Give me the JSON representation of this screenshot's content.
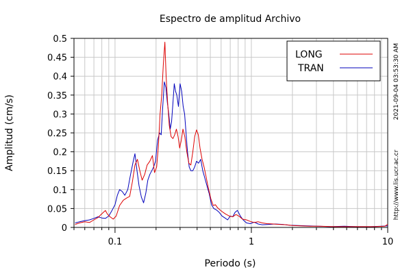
{
  "chart_data": {
    "type": "line",
    "title": "Espectro de amplitud Archivo",
    "xlabel": "Periodo (s)",
    "ylabel": "Amplitud (cm/s)",
    "xscale": "log",
    "xlim": [
      0.05,
      10
    ],
    "ylim": [
      0,
      0.5
    ],
    "xtick_labels": [
      {
        "value": 0.1,
        "label": "0.1"
      },
      {
        "value": 1,
        "label": "1"
      },
      {
        "value": 10,
        "label": "10"
      }
    ],
    "ytick_labels": [
      {
        "value": 0,
        "label": "0"
      },
      {
        "value": 0.05,
        "label": "0.05"
      },
      {
        "value": 0.1,
        "label": "0.1"
      },
      {
        "value": 0.15,
        "label": "0.15"
      },
      {
        "value": 0.2,
        "label": "0.2"
      },
      {
        "value": 0.25,
        "label": "0.25"
      },
      {
        "value": 0.3,
        "label": "0.3"
      },
      {
        "value": 0.35,
        "label": "0.35"
      },
      {
        "value": 0.4,
        "label": "0.4"
      },
      {
        "value": 0.45,
        "label": "0.45"
      },
      {
        "value": 0.5,
        "label": "0.5"
      }
    ],
    "grid": true,
    "legend_position": "top-right",
    "series": [
      {
        "name": "LONG",
        "color": "#dd0000",
        "points": [
          [
            0.051,
            0.008
          ],
          [
            0.055,
            0.012
          ],
          [
            0.06,
            0.015
          ],
          [
            0.065,
            0.013
          ],
          [
            0.07,
            0.02
          ],
          [
            0.075,
            0.026
          ],
          [
            0.08,
            0.036
          ],
          [
            0.085,
            0.045
          ],
          [
            0.088,
            0.035
          ],
          [
            0.092,
            0.028
          ],
          [
            0.097,
            0.022
          ],
          [
            0.102,
            0.03
          ],
          [
            0.108,
            0.058
          ],
          [
            0.115,
            0.072
          ],
          [
            0.122,
            0.078
          ],
          [
            0.128,
            0.082
          ],
          [
            0.134,
            0.12
          ],
          [
            0.14,
            0.165
          ],
          [
            0.146,
            0.18
          ],
          [
            0.152,
            0.15
          ],
          [
            0.158,
            0.125
          ],
          [
            0.165,
            0.14
          ],
          [
            0.172,
            0.165
          ],
          [
            0.18,
            0.175
          ],
          [
            0.188,
            0.19
          ],
          [
            0.195,
            0.145
          ],
          [
            0.202,
            0.16
          ],
          [
            0.208,
            0.215
          ],
          [
            0.214,
            0.3
          ],
          [
            0.22,
            0.35
          ],
          [
            0.226,
            0.43
          ],
          [
            0.232,
            0.49
          ],
          [
            0.237,
            0.4
          ],
          [
            0.243,
            0.33
          ],
          [
            0.25,
            0.27
          ],
          [
            0.258,
            0.24
          ],
          [
            0.266,
            0.235
          ],
          [
            0.274,
            0.245
          ],
          [
            0.282,
            0.26
          ],
          [
            0.29,
            0.24
          ],
          [
            0.298,
            0.21
          ],
          [
            0.306,
            0.23
          ],
          [
            0.315,
            0.26
          ],
          [
            0.325,
            0.24
          ],
          [
            0.336,
            0.2
          ],
          [
            0.348,
            0.17
          ],
          [
            0.36,
            0.165
          ],
          [
            0.372,
            0.2
          ],
          [
            0.384,
            0.24
          ],
          [
            0.396,
            0.258
          ],
          [
            0.408,
            0.245
          ],
          [
            0.42,
            0.21
          ],
          [
            0.435,
            0.18
          ],
          [
            0.45,
            0.16
          ],
          [
            0.468,
            0.13
          ],
          [
            0.486,
            0.1
          ],
          [
            0.505,
            0.075
          ],
          [
            0.525,
            0.058
          ],
          [
            0.545,
            0.06
          ],
          [
            0.565,
            0.052
          ],
          [
            0.59,
            0.046
          ],
          [
            0.62,
            0.04
          ],
          [
            0.65,
            0.035
          ],
          [
            0.69,
            0.03
          ],
          [
            0.73,
            0.028
          ],
          [
            0.77,
            0.034
          ],
          [
            0.81,
            0.03
          ],
          [
            0.86,
            0.022
          ],
          [
            0.92,
            0.02
          ],
          [
            0.98,
            0.016
          ],
          [
            1.05,
            0.013
          ],
          [
            1.12,
            0.015
          ],
          [
            1.2,
            0.012
          ],
          [
            1.3,
            0.01
          ],
          [
            1.45,
            0.009
          ],
          [
            1.6,
            0.008
          ],
          [
            1.8,
            0.007
          ],
          [
            2.0,
            0.005
          ],
          [
            2.3,
            0.004
          ],
          [
            2.7,
            0.003
          ],
          [
            3.2,
            0.003
          ],
          [
            4.0,
            0.002
          ],
          [
            5.0,
            0.002
          ],
          [
            6.5,
            0.002
          ],
          [
            8.0,
            0.002
          ],
          [
            9.5,
            0.003
          ],
          [
            10.0,
            0.008
          ]
        ]
      },
      {
        "name": "TRAN",
        "color": "#0000bb",
        "points": [
          [
            0.051,
            0.012
          ],
          [
            0.055,
            0.015
          ],
          [
            0.06,
            0.018
          ],
          [
            0.065,
            0.02
          ],
          [
            0.07,
            0.024
          ],
          [
            0.075,
            0.028
          ],
          [
            0.08,
            0.025
          ],
          [
            0.085,
            0.024
          ],
          [
            0.09,
            0.03
          ],
          [
            0.095,
            0.045
          ],
          [
            0.1,
            0.06
          ],
          [
            0.104,
            0.085
          ],
          [
            0.108,
            0.1
          ],
          [
            0.113,
            0.095
          ],
          [
            0.118,
            0.085
          ],
          [
            0.124,
            0.1
          ],
          [
            0.13,
            0.14
          ],
          [
            0.136,
            0.175
          ],
          [
            0.14,
            0.195
          ],
          [
            0.145,
            0.15
          ],
          [
            0.15,
            0.11
          ],
          [
            0.156,
            0.08
          ],
          [
            0.162,
            0.065
          ],
          [
            0.168,
            0.09
          ],
          [
            0.174,
            0.125
          ],
          [
            0.18,
            0.14
          ],
          [
            0.186,
            0.15
          ],
          [
            0.192,
            0.16
          ],
          [
            0.198,
            0.175
          ],
          [
            0.205,
            0.23
          ],
          [
            0.212,
            0.25
          ],
          [
            0.218,
            0.245
          ],
          [
            0.224,
            0.32
          ],
          [
            0.23,
            0.385
          ],
          [
            0.236,
            0.37
          ],
          [
            0.242,
            0.33
          ],
          [
            0.248,
            0.3
          ],
          [
            0.254,
            0.26
          ],
          [
            0.26,
            0.28
          ],
          [
            0.266,
            0.33
          ],
          [
            0.272,
            0.38
          ],
          [
            0.278,
            0.36
          ],
          [
            0.284,
            0.35
          ],
          [
            0.292,
            0.32
          ],
          [
            0.3,
            0.38
          ],
          [
            0.308,
            0.36
          ],
          [
            0.316,
            0.32
          ],
          [
            0.324,
            0.3
          ],
          [
            0.332,
            0.25
          ],
          [
            0.34,
            0.2
          ],
          [
            0.35,
            0.16
          ],
          [
            0.36,
            0.15
          ],
          [
            0.372,
            0.15
          ],
          [
            0.384,
            0.16
          ],
          [
            0.396,
            0.175
          ],
          [
            0.41,
            0.17
          ],
          [
            0.425,
            0.18
          ],
          [
            0.44,
            0.15
          ],
          [
            0.456,
            0.13
          ],
          [
            0.472,
            0.11
          ],
          [
            0.49,
            0.09
          ],
          [
            0.51,
            0.06
          ],
          [
            0.53,
            0.05
          ],
          [
            0.555,
            0.046
          ],
          [
            0.58,
            0.04
          ],
          [
            0.61,
            0.03
          ],
          [
            0.64,
            0.025
          ],
          [
            0.67,
            0.02
          ],
          [
            0.7,
            0.03
          ],
          [
            0.73,
            0.028
          ],
          [
            0.76,
            0.04
          ],
          [
            0.79,
            0.045
          ],
          [
            0.83,
            0.03
          ],
          [
            0.87,
            0.02
          ],
          [
            0.92,
            0.012
          ],
          [
            0.98,
            0.01
          ],
          [
            1.05,
            0.014
          ],
          [
            1.12,
            0.009
          ],
          [
            1.2,
            0.007
          ],
          [
            1.35,
            0.008
          ],
          [
            1.5,
            0.009
          ],
          [
            1.7,
            0.008
          ],
          [
            1.9,
            0.006
          ],
          [
            2.2,
            0.005
          ],
          [
            2.6,
            0.004
          ],
          [
            3.1,
            0.003
          ],
          [
            3.8,
            0.002
          ],
          [
            4.8,
            0.003
          ],
          [
            6.0,
            0.002
          ],
          [
            7.5,
            0.002
          ],
          [
            9.0,
            0.003
          ],
          [
            10.0,
            0.004
          ]
        ]
      }
    ]
  },
  "side_text": {
    "url": "http://www.lis.ucr.ac.cr",
    "timestamp": "2021-09-04 03:53:30 AM"
  }
}
